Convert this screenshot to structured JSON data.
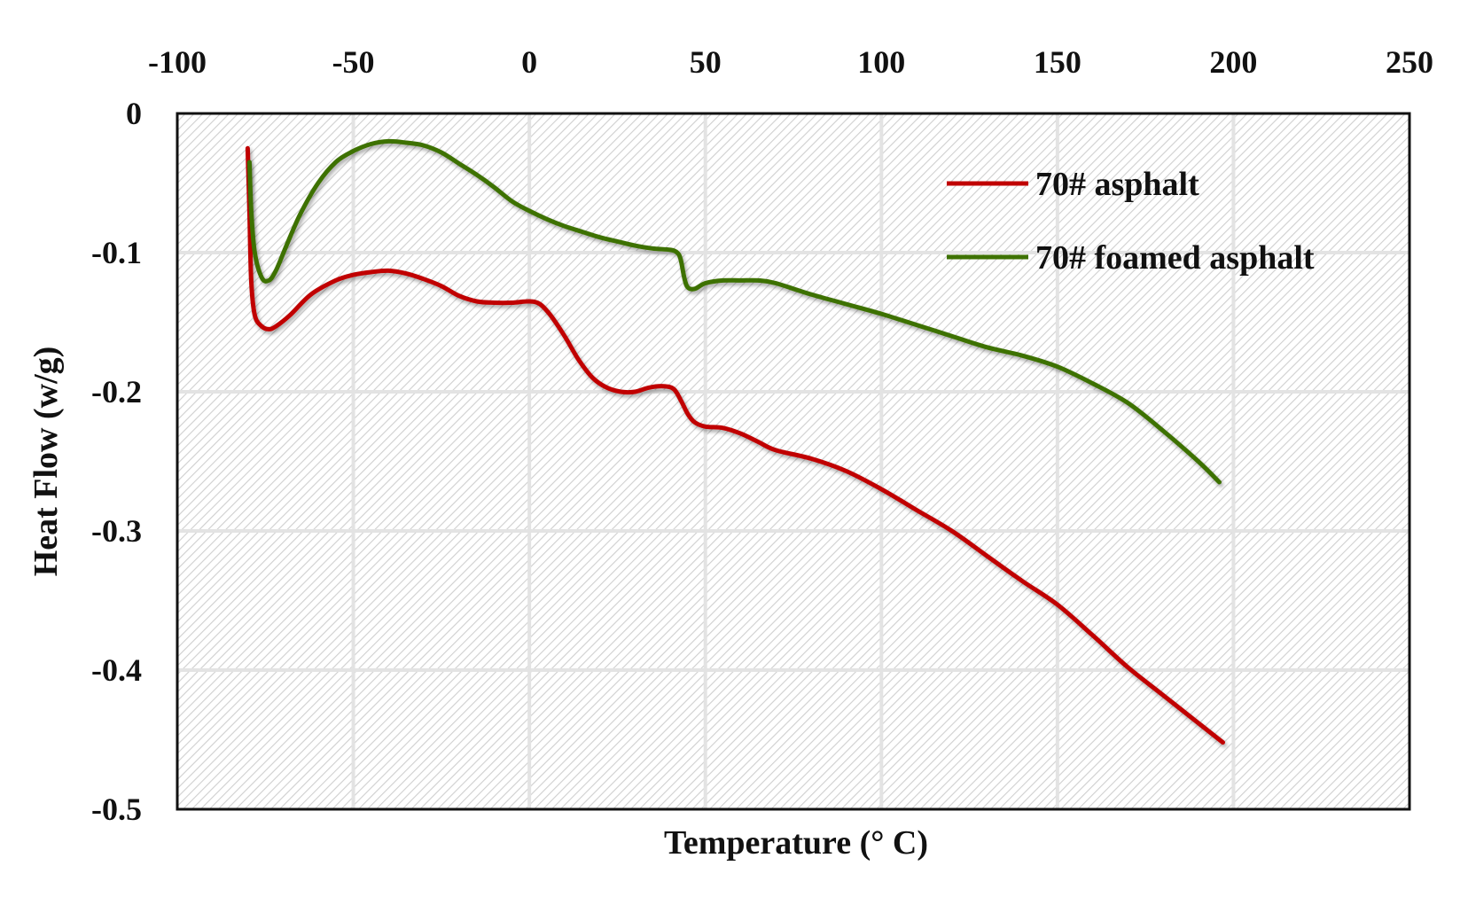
{
  "chart_data": {
    "type": "line",
    "title": "",
    "xlabel": "Temperature (° C)",
    "ylabel": "Heat Flow (w/g)",
    "xlim": [
      -100,
      250
    ],
    "ylim": [
      -0.5,
      0
    ],
    "x_ticks": [
      "-100",
      "-50",
      "0",
      "50",
      "100",
      "150",
      "200",
      "250"
    ],
    "x_tick_values": [
      -100,
      -50,
      0,
      50,
      100,
      150,
      200,
      250
    ],
    "y_ticks": [
      "0",
      "-0.1",
      "-0.2",
      "-0.3",
      "-0.4",
      "-0.5"
    ],
    "y_tick_values": [
      0,
      -0.1,
      -0.2,
      -0.3,
      -0.4,
      -0.5
    ],
    "x_axis_position": "top",
    "grid": true,
    "legend_position": "top-right",
    "series": [
      {
        "name": "70# asphalt",
        "color": "#c00000",
        "points": [
          [
            -80,
            -0.025
          ],
          [
            -79.5,
            -0.07
          ],
          [
            -79,
            -0.12
          ],
          [
            -78,
            -0.145
          ],
          [
            -76,
            -0.153
          ],
          [
            -74,
            -0.155
          ],
          [
            -72,
            -0.153
          ],
          [
            -68,
            -0.145
          ],
          [
            -62,
            -0.13
          ],
          [
            -55,
            -0.12
          ],
          [
            -50,
            -0.116
          ],
          [
            -45,
            -0.114
          ],
          [
            -40,
            -0.113
          ],
          [
            -35,
            -0.115
          ],
          [
            -30,
            -0.119
          ],
          [
            -25,
            -0.124
          ],
          [
            -20,
            -0.131
          ],
          [
            -15,
            -0.135
          ],
          [
            -10,
            -0.136
          ],
          [
            -5,
            -0.136
          ],
          [
            0,
            -0.135
          ],
          [
            3,
            -0.137
          ],
          [
            6,
            -0.145
          ],
          [
            10,
            -0.16
          ],
          [
            14,
            -0.177
          ],
          [
            18,
            -0.19
          ],
          [
            22,
            -0.197
          ],
          [
            26,
            -0.2
          ],
          [
            30,
            -0.2
          ],
          [
            34,
            -0.197
          ],
          [
            38,
            -0.196
          ],
          [
            41,
            -0.198
          ],
          [
            43,
            -0.206
          ],
          [
            45,
            -0.216
          ],
          [
            47,
            -0.222
          ],
          [
            50,
            -0.225
          ],
          [
            55,
            -0.226
          ],
          [
            60,
            -0.23
          ],
          [
            65,
            -0.236
          ],
          [
            70,
            -0.242
          ],
          [
            80,
            -0.248
          ],
          [
            90,
            -0.257
          ],
          [
            100,
            -0.27
          ],
          [
            110,
            -0.285
          ],
          [
            120,
            -0.3
          ],
          [
            130,
            -0.318
          ],
          [
            140,
            -0.336
          ],
          [
            150,
            -0.353
          ],
          [
            160,
            -0.375
          ],
          [
            170,
            -0.398
          ],
          [
            180,
            -0.418
          ],
          [
            190,
            -0.438
          ],
          [
            197,
            -0.452
          ]
        ]
      },
      {
        "name": "70# foamed asphalt",
        "color": "#3d7100",
        "points": [
          [
            -79.5,
            -0.035
          ],
          [
            -79,
            -0.07
          ],
          [
            -78,
            -0.1
          ],
          [
            -76,
            -0.118
          ],
          [
            -74,
            -0.12
          ],
          [
            -72,
            -0.113
          ],
          [
            -69,
            -0.095
          ],
          [
            -65,
            -0.072
          ],
          [
            -60,
            -0.05
          ],
          [
            -55,
            -0.035
          ],
          [
            -50,
            -0.027
          ],
          [
            -45,
            -0.022
          ],
          [
            -40,
            -0.02
          ],
          [
            -35,
            -0.021
          ],
          [
            -30,
            -0.023
          ],
          [
            -25,
            -0.028
          ],
          [
            -20,
            -0.036
          ],
          [
            -15,
            -0.044
          ],
          [
            -10,
            -0.053
          ],
          [
            -5,
            -0.063
          ],
          [
            0,
            -0.07
          ],
          [
            5,
            -0.076
          ],
          [
            10,
            -0.081
          ],
          [
            15,
            -0.085
          ],
          [
            20,
            -0.089
          ],
          [
            25,
            -0.092
          ],
          [
            30,
            -0.095
          ],
          [
            35,
            -0.097
          ],
          [
            40,
            -0.098
          ],
          [
            42,
            -0.1
          ],
          [
            43,
            -0.105
          ],
          [
            44,
            -0.118
          ],
          [
            45,
            -0.125
          ],
          [
            47,
            -0.126
          ],
          [
            50,
            -0.122
          ],
          [
            55,
            -0.12
          ],
          [
            60,
            -0.12
          ],
          [
            65,
            -0.12
          ],
          [
            70,
            -0.122
          ],
          [
            80,
            -0.13
          ],
          [
            90,
            -0.137
          ],
          [
            100,
            -0.144
          ],
          [
            110,
            -0.152
          ],
          [
            120,
            -0.16
          ],
          [
            130,
            -0.168
          ],
          [
            140,
            -0.174
          ],
          [
            150,
            -0.182
          ],
          [
            160,
            -0.194
          ],
          [
            170,
            -0.208
          ],
          [
            180,
            -0.228
          ],
          [
            190,
            -0.25
          ],
          [
            196,
            -0.265
          ]
        ]
      }
    ]
  }
}
